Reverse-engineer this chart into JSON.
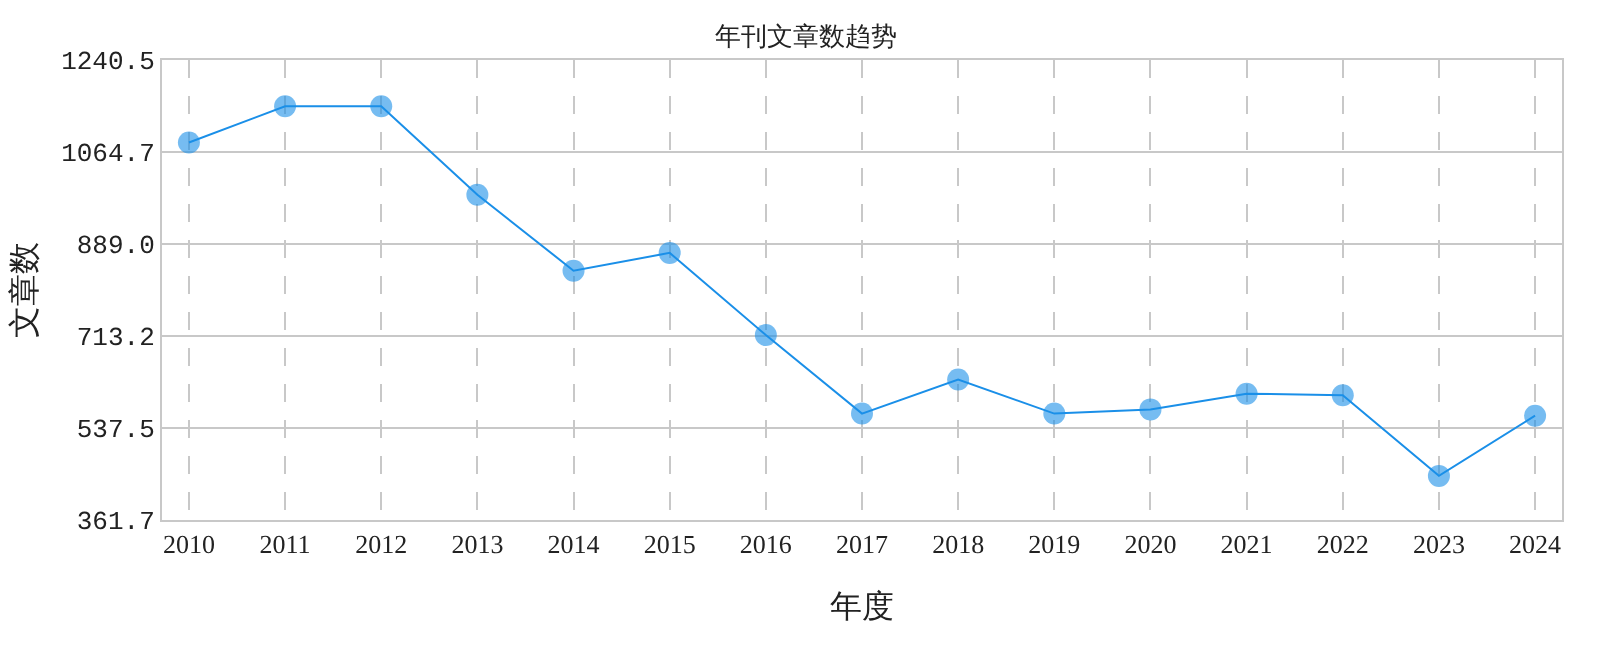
{
  "chart_data": {
    "type": "line",
    "title": "年刊文章数趋势",
    "xlabel": "年度",
    "ylabel": "文章数",
    "categories": [
      "2010",
      "2011",
      "2012",
      "2013",
      "2014",
      "2015",
      "2016",
      "2017",
      "2018",
      "2019",
      "2020",
      "2021",
      "2022",
      "2023",
      "2024"
    ],
    "series": [
      {
        "color": "#1a8fe8",
        "values": [
          1083,
          1152,
          1152,
          983,
          838,
          872,
          715,
          565,
          630,
          565,
          573,
          603,
          600,
          446,
          561
        ]
      }
    ],
    "ylim": [
      361.7,
      1240.5
    ],
    "yticks": [
      {
        "value": 361.7,
        "label": "361.7"
      },
      {
        "value": 537.5,
        "label": "537.5"
      },
      {
        "value": 713.2,
        "label": "713.2"
      },
      {
        "value": 889.0,
        "label": "889.0"
      },
      {
        "value": 1064.7,
        "label": "1064.7"
      },
      {
        "value": 1240.5,
        "label": "1240.5"
      }
    ],
    "grid": true,
    "marker": "circle",
    "line_style": "solid"
  }
}
